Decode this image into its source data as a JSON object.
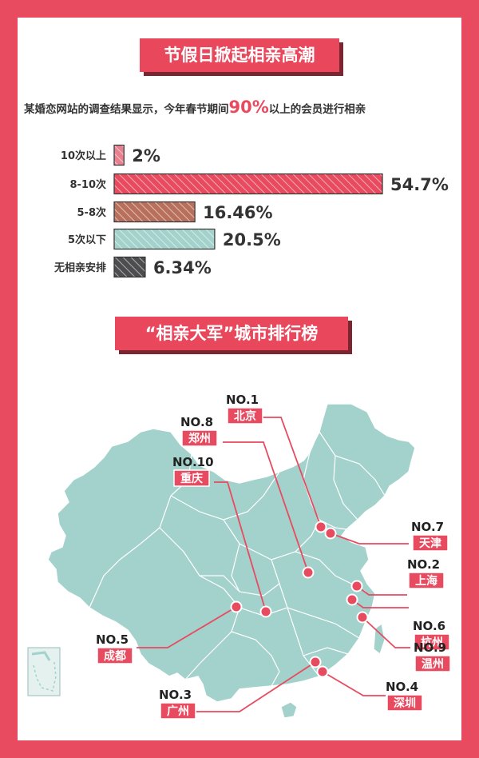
{
  "title": "节假日掀起相亲高潮",
  "subtitle": {
    "prefix": "某婚恋网站的调查结果显示，今年春节期间",
    "highlight": "90%",
    "suffix": "以上的会员进行相亲"
  },
  "chart_data": {
    "type": "bar",
    "orientation": "horizontal",
    "categories": [
      "10次以上",
      "8-10次",
      "5-8次",
      "5次以下",
      "无相亲安排"
    ],
    "values": [
      2,
      54.7,
      16.46,
      20.5,
      6.34
    ],
    "value_labels": [
      "2%",
      "54.7%",
      "16.46%",
      "20.5%",
      "6.34%"
    ],
    "colors": [
      "#e8808f",
      "#e84a5f",
      "#b8705c",
      "#a3d2cc",
      "#4d4d4f"
    ],
    "unit": "%"
  },
  "ranking": {
    "title": "“相亲大军”城市排行榜",
    "cities": [
      {
        "rank": "NO.1",
        "name": "北京"
      },
      {
        "rank": "NO.2",
        "name": "上海"
      },
      {
        "rank": "NO.3",
        "name": "广州"
      },
      {
        "rank": "NO.4",
        "name": "深圳"
      },
      {
        "rank": "NO.5",
        "name": "成都"
      },
      {
        "rank": "NO.6",
        "name": "杭州"
      },
      {
        "rank": "NO.7",
        "name": "天津"
      },
      {
        "rank": "NO.8",
        "name": "郑州"
      },
      {
        "rank": "NO.9",
        "name": "温州"
      },
      {
        "rank": "NO.10",
        "name": "重庆"
      }
    ]
  },
  "colors": {
    "accent": "#e84a5f",
    "map": "#a3d2cc",
    "map_stroke": "#ffffff"
  }
}
